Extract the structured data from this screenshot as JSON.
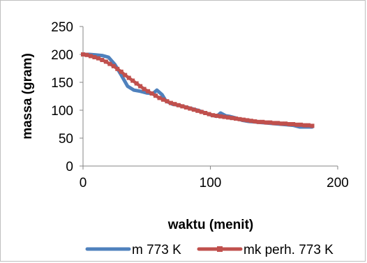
{
  "chart_data": {
    "type": "line",
    "title": "",
    "xlabel": "waktu (menit)",
    "ylabel": "massa (gram)",
    "xlim": [
      0,
      200
    ],
    "ylim": [
      0,
      250
    ],
    "xticks": [
      0,
      100,
      200
    ],
    "yticks": [
      0,
      50,
      100,
      150,
      200,
      250
    ],
    "grid": false,
    "legend_position": "bottom",
    "series": [
      {
        "name": "m 773 K",
        "color": "#4f81bd",
        "marker": "none",
        "x": [
          0,
          5,
          10,
          15,
          20,
          25,
          30,
          35,
          40,
          45,
          50,
          55,
          58,
          62,
          65,
          70,
          75,
          80,
          85,
          90,
          95,
          100,
          105,
          108,
          112,
          115,
          120,
          125,
          130,
          135,
          140,
          145,
          150,
          155,
          160,
          165,
          170,
          175,
          180
        ],
        "y": [
          200,
          200,
          199,
          198,
          195,
          182,
          163,
          143,
          136,
          134,
          131,
          130,
          136,
          128,
          117,
          111,
          109,
          106,
          103,
          100,
          96,
          92,
          89,
          95,
          90,
          89,
          86,
          82,
          80,
          79,
          78,
          77,
          76,
          75,
          74,
          73,
          70,
          70,
          70
        ]
      },
      {
        "name": "mk perh. 773 K",
        "color": "#c0504d",
        "marker": "square",
        "x": [
          0,
          3,
          6,
          9,
          12,
          15,
          18,
          21,
          24,
          27,
          30,
          33,
          36,
          39,
          42,
          45,
          48,
          51,
          54,
          57,
          60,
          63,
          66,
          69,
          72,
          75,
          78,
          81,
          84,
          87,
          90,
          93,
          96,
          99,
          102,
          105,
          108,
          111,
          114,
          117,
          120,
          123,
          126,
          129,
          132,
          135,
          138,
          141,
          144,
          147,
          150,
          153,
          156,
          159,
          162,
          165,
          168,
          171,
          174,
          177,
          180
        ],
        "y": [
          200,
          199,
          197,
          195,
          193,
          190,
          187,
          183,
          179,
          174,
          169,
          163,
          158,
          153,
          148,
          143,
          138,
          134,
          130,
          126,
          122,
          119,
          116,
          113,
          111,
          109,
          107,
          105,
          103,
          101,
          99,
          97,
          95,
          93,
          91,
          90,
          89,
          88,
          87,
          86,
          85,
          84,
          83,
          82,
          81,
          80,
          79,
          79,
          78,
          78,
          77,
          77,
          76,
          76,
          75,
          75,
          74,
          74,
          73,
          73,
          72
        ]
      }
    ]
  }
}
